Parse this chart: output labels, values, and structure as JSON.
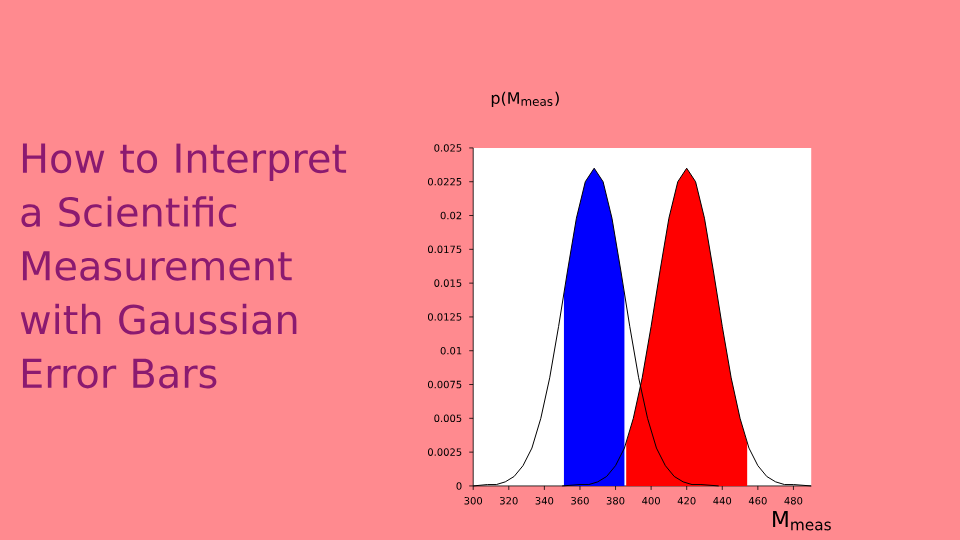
{
  "chart_data": {
    "type": "line",
    "title": "How to Interpret a Scientific Measurement with Gaussian Error Bars",
    "ylabel": "p(M$_{meas}$)",
    "xlabel": "M$_{meas}$",
    "xlim": [
      300,
      490
    ],
    "xticks": [
      300,
      320,
      340,
      360,
      380,
      400,
      420,
      440,
      460,
      480
    ],
    "ylim": [
      0,
      0.025
    ],
    "yticks": [
      0,
      0.0025,
      0.005,
      0.0075,
      0.01,
      0.0125,
      0.015,
      0.0175,
      0.02,
      0.0225,
      0.025
    ],
    "series": [
      {
        "type": "area",
        "color": "#0000ff",
        "x": [
          351,
          353,
          358,
          363,
          368,
          373,
          378,
          383,
          385
        ],
        "values": [
          0.0142,
          0.0159,
          0.0198,
          0.0225,
          0.0235,
          0.0225,
          0.0198,
          0.0159,
          0.0142
        ]
      },
      {
        "type": "area",
        "color": "#ff0000",
        "x": [
          386,
          390,
          395,
          400,
          405,
          410,
          415,
          420,
          425,
          430,
          435,
          440,
          445,
          450,
          454
        ],
        "values": [
          0.0032,
          0.005,
          0.008,
          0.0118,
          0.0159,
          0.0198,
          0.0225,
          0.0235,
          0.0225,
          0.0198,
          0.0159,
          0.0118,
          0.008,
          0.005,
          0.0032
        ]
      },
      {
        "color": "#000000",
        "x": [
          300,
          308,
          313,
          318,
          323,
          328,
          333,
          338,
          343,
          348,
          353,
          358,
          363,
          368,
          373,
          378,
          383,
          388,
          393,
          398,
          403,
          408,
          413,
          418,
          423,
          428,
          438
        ],
        "values": [
          0,
          0.0001,
          0.0001,
          0.0003,
          0.0007,
          0.0015,
          0.0028,
          0.005,
          0.008,
          0.0118,
          0.0159,
          0.0198,
          0.0225,
          0.0235,
          0.0225,
          0.0198,
          0.0159,
          0.0118,
          0.008,
          0.005,
          0.0028,
          0.0015,
          0.0007,
          0.0003,
          0.0001,
          0.0001,
          0
        ]
      },
      {
        "color": "#000000",
        "x": [
          350,
          360,
          365,
          370,
          375,
          380,
          385,
          390,
          395,
          400,
          405,
          410,
          415,
          420,
          425,
          430,
          435,
          440,
          445,
          450,
          455,
          460,
          465,
          470,
          475,
          480,
          490
        ],
        "values": [
          0,
          0.0001,
          0.0001,
          0.0003,
          0.0007,
          0.0015,
          0.0028,
          0.005,
          0.008,
          0.0118,
          0.0159,
          0.0198,
          0.0225,
          0.0235,
          0.0225,
          0.0198,
          0.0159,
          0.0118,
          0.008,
          0.005,
          0.0028,
          0.0015,
          0.0007,
          0.0003,
          0.0001,
          0.0001,
          0
        ]
      }
    ]
  }
}
